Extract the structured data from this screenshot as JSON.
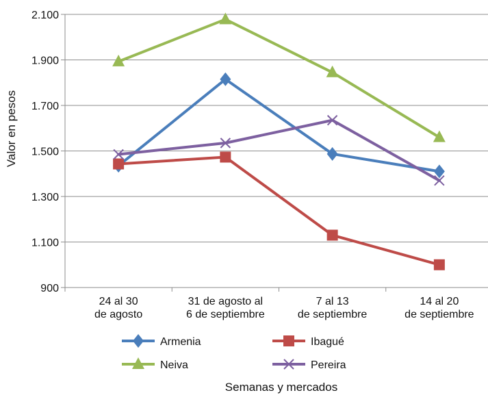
{
  "chart_data": {
    "type": "line",
    "title": "",
    "xlabel": "Semanas y mercados",
    "ylabel": "Valor en pesos",
    "ylim": [
      900,
      2100
    ],
    "yticks": [
      900,
      1100,
      1300,
      1500,
      1700,
      1900,
      2100
    ],
    "ytick_labels": [
      "900",
      "1.100",
      "1.300",
      "1.500",
      "1.700",
      "1.900",
      "2.100"
    ],
    "categories": [
      [
        "24 al 30",
        "de agosto"
      ],
      [
        "31 de agosto al",
        "6 de septiembre"
      ],
      [
        "7 al 13",
        "de septiembre"
      ],
      [
        "14 al 20",
        "de septiembre"
      ]
    ],
    "grid": true,
    "legend_position": "bottom",
    "series": [
      {
        "name": "Armenia",
        "color": "#4A7EBB",
        "marker": "diamond",
        "values": [
          1435,
          1815,
          1487,
          1410
        ]
      },
      {
        "name": "Ibagué",
        "color": "#BE4B48",
        "marker": "square",
        "values": [
          1443,
          1473,
          1130,
          1000
        ]
      },
      {
        "name": "Neiva",
        "color": "#98B954",
        "marker": "triangle",
        "values": [
          1893,
          2078,
          1845,
          1560
        ]
      },
      {
        "name": "Pereira",
        "color": "#7D60A0",
        "marker": "x",
        "values": [
          1485,
          1535,
          1635,
          1370
        ]
      }
    ]
  }
}
